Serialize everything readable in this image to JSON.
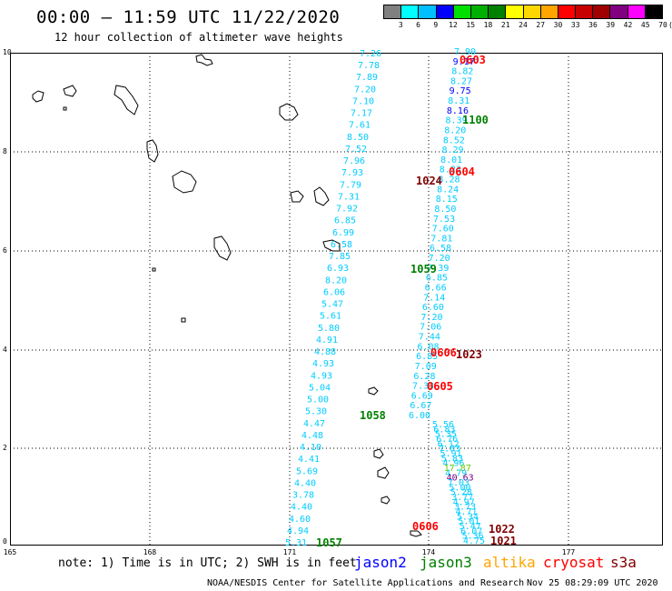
{
  "header": {
    "title": "00:00 – 11:59 UTC 11/22/2020",
    "subtitle": "12 hour collection of altimeter wave heights"
  },
  "legend": {
    "colors": [
      "#808080",
      "#00ffff",
      "#00bfff",
      "#0000ff",
      "#00e000",
      "#00b000",
      "#008000",
      "#ffff00",
      "#ffd700",
      "#ffa500",
      "#ff0000",
      "#c80000",
      "#a00000",
      "#800080",
      "#ff00ff",
      "#000000"
    ],
    "labels": [
      "3",
      "6",
      "9",
      "12",
      "15",
      "18",
      "21",
      "24",
      "27",
      "30",
      "33",
      "36",
      "39",
      "42",
      "45",
      "70",
      "(ft)"
    ]
  },
  "axes": {
    "y_ticks": [
      "10",
      "8",
      "6",
      "4",
      "2",
      "0"
    ],
    "x_ticks": [
      "165",
      "168",
      "171",
      "174",
      "177"
    ]
  },
  "map": {
    "islands": "land-outline"
  },
  "tracks": {
    "values": [
      {
        "t": "7.26",
        "c": "#00ccff"
      },
      {
        "t": "7.78",
        "c": "#00ccff"
      },
      {
        "t": "7.89",
        "c": "#00ccff"
      },
      {
        "t": "7.20",
        "c": "#00ccff"
      },
      {
        "t": "7.10",
        "c": "#00ccff"
      },
      {
        "t": "7.17",
        "c": "#00ccff"
      },
      {
        "t": "7.61",
        "c": "#00ccff"
      },
      {
        "t": "8.50",
        "c": "#00ccff"
      },
      {
        "t": "7.52",
        "c": "#00ccff"
      },
      {
        "t": "7.96",
        "c": "#00ccff"
      },
      {
        "t": "7.93",
        "c": "#00ccff"
      },
      {
        "t": "7.79",
        "c": "#00ccff"
      },
      {
        "t": "7.31",
        "c": "#00ccff"
      },
      {
        "t": "7.92",
        "c": "#00ccff"
      },
      {
        "t": "6.85",
        "c": "#00ccff"
      },
      {
        "t": "6.99",
        "c": "#00ccff"
      },
      {
        "t": "6.58",
        "c": "#00ccff"
      },
      {
        "t": "7.85",
        "c": "#00ccff"
      },
      {
        "t": "6.93",
        "c": "#00ccff"
      },
      {
        "t": "8.20",
        "c": "#00ccff"
      },
      {
        "t": "6.06",
        "c": "#00ccff"
      },
      {
        "t": "5.47",
        "c": "#00ccff"
      },
      {
        "t": "5.61",
        "c": "#00ccff"
      },
      {
        "t": "5.80",
        "c": "#00ccff"
      },
      {
        "t": "4.91",
        "c": "#00ccff"
      },
      {
        "t": "4.88",
        "c": "#00ccff"
      },
      {
        "t": "4.93",
        "c": "#00ccff"
      },
      {
        "t": "4.93",
        "c": "#00ccff"
      },
      {
        "t": "5.04",
        "c": "#00ccff"
      },
      {
        "t": "5.00",
        "c": "#00ccff"
      },
      {
        "t": "5.30",
        "c": "#00ccff"
      },
      {
        "t": "4.47",
        "c": "#00ccff"
      },
      {
        "t": "4.48",
        "c": "#00ccff"
      },
      {
        "t": "4.10",
        "c": "#00ccff"
      },
      {
        "t": "4.41",
        "c": "#00ccff"
      },
      {
        "t": "5.69",
        "c": "#00ccff"
      },
      {
        "t": "4.40",
        "c": "#00ccff"
      },
      {
        "t": "3.78",
        "c": "#00ccff"
      },
      {
        "t": "4.40",
        "c": "#00ccff"
      },
      {
        "t": "4.60",
        "c": "#00ccff"
      },
      {
        "t": "4.94",
        "c": "#00ccff"
      },
      {
        "t": "5.31",
        "c": "#00ccff"
      },
      {
        "t": "7.90",
        "c": "#00ccff"
      },
      {
        "t": "9.17",
        "c": "#0000ff"
      },
      {
        "t": "8.82",
        "c": "#00ccff"
      },
      {
        "t": "8.27",
        "c": "#00ccff"
      },
      {
        "t": "9.75",
        "c": "#0000ff"
      },
      {
        "t": "8.31",
        "c": "#00ccff"
      },
      {
        "t": "8.16",
        "c": "#0000ff"
      },
      {
        "t": "8.39",
        "c": "#00ccff"
      },
      {
        "t": "8.20",
        "c": "#00ccff"
      },
      {
        "t": "8.52",
        "c": "#00ccff"
      },
      {
        "t": "8.29",
        "c": "#00ccff"
      },
      {
        "t": "8.01",
        "c": "#00ccff"
      },
      {
        "t": "8.23",
        "c": "#00ccff"
      },
      {
        "t": "8.28",
        "c": "#00ccff"
      },
      {
        "t": "8.24",
        "c": "#00ccff"
      },
      {
        "t": "8.15",
        "c": "#00ccff"
      },
      {
        "t": "8.50",
        "c": "#00ccff"
      },
      {
        "t": "7.53",
        "c": "#00ccff"
      },
      {
        "t": "7.60",
        "c": "#00ccff"
      },
      {
        "t": "7.81",
        "c": "#00ccff"
      },
      {
        "t": "6.58",
        "c": "#00ccff"
      },
      {
        "t": "7.20",
        "c": "#00ccff"
      },
      {
        "t": "7.39",
        "c": "#00ccff"
      },
      {
        "t": "6.85",
        "c": "#00ccff"
      },
      {
        "t": "6.66",
        "c": "#00ccff"
      },
      {
        "t": "7.14",
        "c": "#00ccff"
      },
      {
        "t": "6.60",
        "c": "#00ccff"
      },
      {
        "t": "7.20",
        "c": "#00ccff"
      },
      {
        "t": "7.06",
        "c": "#00ccff"
      },
      {
        "t": "7.44",
        "c": "#00ccff"
      },
      {
        "t": "6.08",
        "c": "#00ccff"
      },
      {
        "t": "6.85",
        "c": "#00ccff"
      },
      {
        "t": "7.09",
        "c": "#00ccff"
      },
      {
        "t": "6.28",
        "c": "#00ccff"
      },
      {
        "t": "7.33",
        "c": "#00ccff"
      },
      {
        "t": "6.69",
        "c": "#00ccff"
      },
      {
        "t": "6.67",
        "c": "#00ccff"
      },
      {
        "t": "6.00",
        "c": "#00ccff"
      },
      {
        "t": "5.56",
        "c": "#00ccff"
      },
      {
        "t": "6.83",
        "c": "#00ccff"
      },
      {
        "t": "5.35",
        "c": "#00ccff"
      },
      {
        "t": "6.76",
        "c": "#00ccff"
      },
      {
        "t": "6.12",
        "c": "#00ccff"
      },
      {
        "t": "7.03",
        "c": "#00ccff"
      },
      {
        "t": "5.91",
        "c": "#00ccff"
      },
      {
        "t": "5.83",
        "c": "#00ccff"
      },
      {
        "t": "4.96",
        "c": "#00ccff"
      },
      {
        "t": "17.87",
        "c": "#66cc00"
      },
      {
        "t": "4.79",
        "c": "#00ccff"
      },
      {
        "t": "40.63",
        "c": "#800080"
      },
      {
        "t": "7.03",
        "c": "#00ccff"
      },
      {
        "t": "5.00",
        "c": "#00ccff"
      },
      {
        "t": "5.28",
        "c": "#00ccff"
      },
      {
        "t": "3.77",
        "c": "#00ccff"
      },
      {
        "t": "4.97",
        "c": "#00ccff"
      },
      {
        "t": "3.73",
        "c": "#00ccff"
      },
      {
        "t": "4.71",
        "c": "#00ccff"
      },
      {
        "t": "5.34",
        "c": "#00ccff"
      },
      {
        "t": "5.01",
        "c": "#00ccff"
      },
      {
        "t": "5.47",
        "c": "#00ccff"
      },
      {
        "t": "6.07",
        "c": "#00ccff"
      },
      {
        "t": "5.36",
        "c": "#00ccff"
      },
      {
        "t": "4.75",
        "c": "#00ccff"
      }
    ],
    "times": [
      {
        "t": "0603",
        "c": "#ff0000"
      },
      {
        "t": "1100",
        "c": "#008000"
      },
      {
        "t": "0604",
        "c": "#ff0000"
      },
      {
        "t": "1024",
        "c": "#800000"
      },
      {
        "t": "1059",
        "c": "#008000"
      },
      {
        "t": "0606",
        "c": "#ff0000"
      },
      {
        "t": "1023",
        "c": "#800000"
      },
      {
        "t": "0605",
        "c": "#ff0000"
      },
      {
        "t": "1058",
        "c": "#008000"
      },
      {
        "t": "0606",
        "c": "#ff0000"
      },
      {
        "t": "1022",
        "c": "#800000"
      },
      {
        "t": "1021",
        "c": "#800000"
      },
      {
        "t": "1057",
        "c": "#008000"
      }
    ]
  },
  "footer": {
    "note": "note: 1) Time is in UTC; 2) SWH is in feet",
    "satellites": [
      {
        "name": "jason2",
        "color": "#0000ff"
      },
      {
        "name": "jason3",
        "color": "#008000"
      },
      {
        "name": "altika",
        "color": "#ffa500"
      },
      {
        "name": "cryosat",
        "color": "#ff0000"
      },
      {
        "name": "s3a",
        "color": "#800000"
      }
    ],
    "credits": "NOAA/NESDIS Center for Satellite Applications and Research",
    "timestamp": "Nov 25 08:29:09 UTC 2020"
  }
}
